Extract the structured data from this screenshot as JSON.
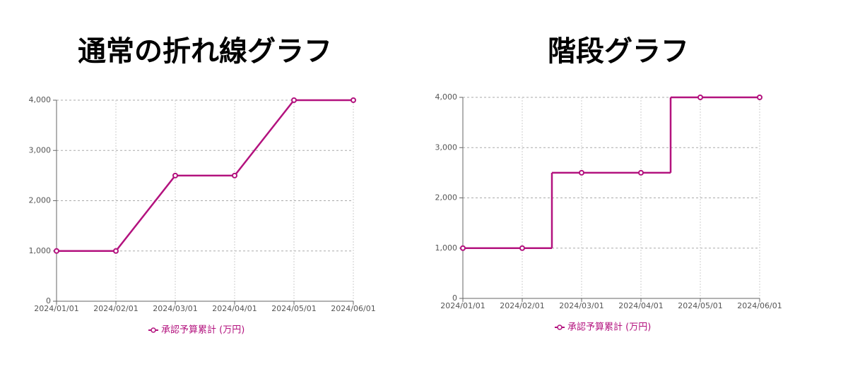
{
  "chart_data": [
    {
      "type": "line",
      "title": "通常の折れ線グラフ",
      "categories": [
        "2024/01/01",
        "2024/02/01",
        "2024/03/01",
        "2024/04/01",
        "2024/05/01",
        "2024/06/01"
      ],
      "series": [
        {
          "name": "承認予算累計 (万円)",
          "color": "#b3127e",
          "values": [
            1000,
            1000,
            2500,
            2500,
            4000,
            4000
          ]
        }
      ],
      "ylim": [
        0,
        4000
      ],
      "yticks": [
        0,
        {
          "value": 1000,
          "label": "1,000"
        },
        {
          "value": 2000,
          "label": "2,000"
        },
        {
          "value": 3000,
          "label": "3,000"
        },
        {
          "value": 4000,
          "label": "4,000"
        }
      ],
      "grid": true,
      "legend": "bottom"
    },
    {
      "type": "step",
      "title": "階段グラフ",
      "categories": [
        "2024/01/01",
        "2024/02/01",
        "2024/03/01",
        "2024/04/01",
        "2024/05/01",
        "2024/06/01"
      ],
      "series": [
        {
          "name": "承認予算累計 (万円)",
          "color": "#b3127e",
          "values": [
            1000,
            1000,
            2500,
            2500,
            4000,
            4000
          ]
        }
      ],
      "ylim": [
        0,
        4000
      ],
      "yticks": [
        0,
        {
          "value": 1000,
          "label": "1,000"
        },
        {
          "value": 2000,
          "label": "2,000"
        },
        {
          "value": 3000,
          "label": "3,000"
        },
        {
          "value": 4000,
          "label": "4,000"
        }
      ],
      "grid": true,
      "legend": "bottom"
    }
  ]
}
